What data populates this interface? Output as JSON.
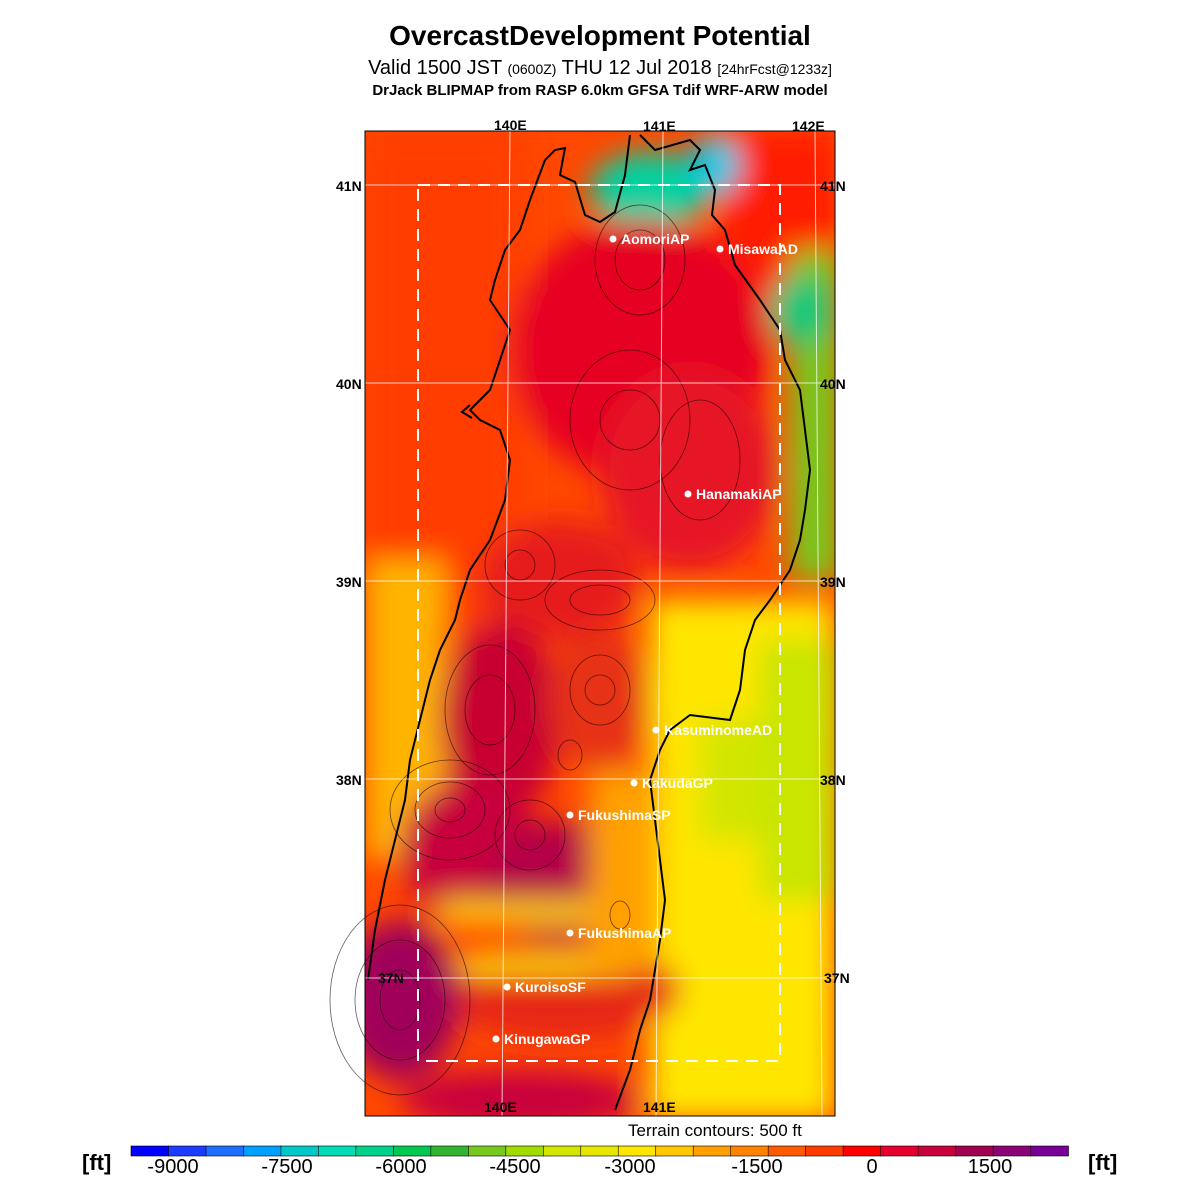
{
  "title": {
    "main": "OvercastDevelopment Potential",
    "valid_main_a": "Valid 1500 JST",
    "valid_small_a": "(0600Z)",
    "valid_main_b": "THU 12 Jul 2018",
    "valid_small_b": "[24hrFcst@1233z]",
    "model": "DrJack BLIPMAP from RASP 6.0km GFSA Tdif WRF-ARW model"
  },
  "map": {
    "longitude_labels_top": [
      "140E",
      "141E",
      "142E"
    ],
    "longitude_labels_bottom": [
      "140E",
      "141E"
    ],
    "latitude_labels_left": [
      "41N",
      "40N",
      "39N",
      "38N",
      "37N"
    ],
    "latitude_labels_right": [
      "41N",
      "40N",
      "39N",
      "38N",
      "37N"
    ],
    "stations": [
      {
        "name": "AomoriAP"
      },
      {
        "name": "MisawaAD"
      },
      {
        "name": "HanamakiAP"
      },
      {
        "name": "KasuminomeAD"
      },
      {
        "name": "KakudaGP"
      },
      {
        "name": "FukushimaSP"
      },
      {
        "name": "FukushimaAP"
      },
      {
        "name": "KuroisoSF"
      },
      {
        "name": "KinugawaGP"
      }
    ],
    "terrain_note": "Terrain contours: 500 ft"
  },
  "colorbar": {
    "unit_left": "[ft]",
    "unit_right": "[ft]",
    "tick_labels": [
      "-9000",
      "-7500",
      "-6000",
      "-4500",
      "-3000",
      "-1500",
      "0",
      "1500"
    ],
    "colors": [
      "#0000ff",
      "#1e3cff",
      "#1e6eff",
      "#00a0ff",
      "#00c8c8",
      "#00dcb4",
      "#00d28c",
      "#00c850",
      "#32b432",
      "#78c81e",
      "#a0dc00",
      "#d2e600",
      "#e6e600",
      "#ffe600",
      "#ffc800",
      "#ffa000",
      "#ff8200",
      "#ff5a00",
      "#ff3c00",
      "#ff0000",
      "#e60032",
      "#c8003c",
      "#a00050",
      "#8c0078",
      "#780096"
    ]
  },
  "colors": {
    "land_warm": "#e63c14",
    "sea_orange": "#ff5a00",
    "coast_yellow": "#ffe600",
    "north_cyan": "#00c8c8",
    "green": "#78c81e"
  }
}
